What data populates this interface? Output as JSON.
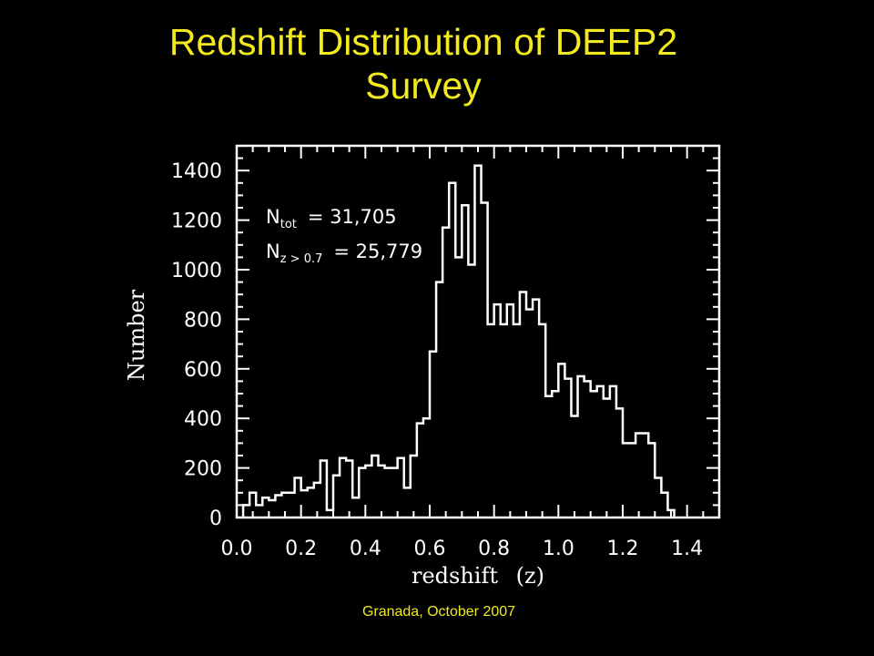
{
  "slide": {
    "title_line1": "Redshift Distribution of DEEP2",
    "title_line2": "Survey",
    "footer": "Granada, October 2007"
  },
  "colors": {
    "background": "#000000",
    "title": "#f2ea1e",
    "plot": "#ffffff"
  },
  "chart_data": {
    "type": "histogram",
    "xlabel": "redshift",
    "xlabel_var": "(z)",
    "ylabel": "Number",
    "xlim": [
      0.0,
      1.5
    ],
    "ylim": [
      0,
      1500
    ],
    "grid": false,
    "xticks": [
      "0.0",
      "0.2",
      "0.4",
      "0.6",
      "0.8",
      "1.0",
      "1.2",
      "1.4"
    ],
    "yticks": [
      "0",
      "200",
      "400",
      "600",
      "800",
      "1000",
      "1200",
      "1400"
    ],
    "bin_width": 0.02,
    "bin_start": 0.02,
    "values": [
      50,
      100,
      50,
      80,
      70,
      90,
      100,
      100,
      160,
      110,
      120,
      140,
      230,
      30,
      170,
      240,
      230,
      80,
      200,
      210,
      250,
      210,
      200,
      200,
      240,
      120,
      250,
      380,
      400,
      670,
      950,
      1170,
      1350,
      1050,
      1260,
      1020,
      1420,
      1270,
      780,
      860,
      780,
      860,
      780,
      910,
      840,
      880,
      780,
      490,
      510,
      620,
      560,
      410,
      570,
      550,
      510,
      530,
      480,
      530,
      440,
      300,
      300,
      340,
      340,
      300,
      160,
      100,
      30
    ],
    "annotations": [
      {
        "main": "N",
        "sub": "tot",
        "text": "= 31,705"
      },
      {
        "main": "N",
        "sub": "z > 0.7",
        "text": "= 25,779"
      }
    ]
  }
}
